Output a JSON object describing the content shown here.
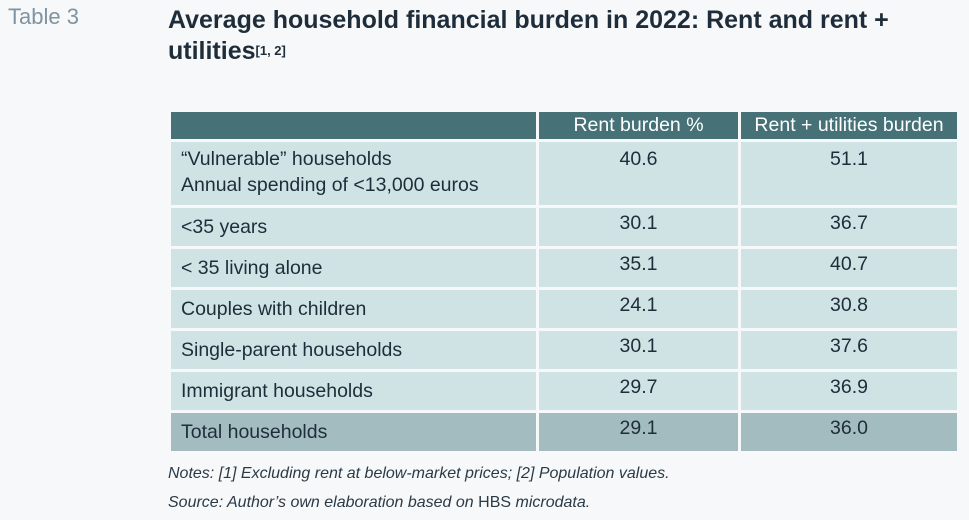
{
  "table_label": "Table 3",
  "title": "Average household financial burden in 2022: Rent and rent + utilities",
  "title_sup": "[1, 2]",
  "columns": [
    "",
    "Rent burden %",
    "Rent + utilities burden"
  ],
  "rows": [
    {
      "label": "“Vulnerable” households",
      "label2": "Annual spending of <13,000 euros",
      "rent": "40.6",
      "rent_util": "51.1"
    },
    {
      "label": "<35 years",
      "rent": "30.1",
      "rent_util": "36.7"
    },
    {
      "label": "< 35 living alone",
      "rent": "35.1",
      "rent_util": "40.7"
    },
    {
      "label": "Couples with children",
      "rent": "24.1",
      "rent_util": "30.8"
    },
    {
      "label": "Single-parent households",
      "rent": "30.1",
      "rent_util": "37.6"
    },
    {
      "label": "Immigrant households",
      "rent": "29.7",
      "rent_util": "36.9"
    },
    {
      "label": "Total households",
      "rent": "29.1",
      "rent_util": "36.0"
    }
  ],
  "notes": {
    "line1": "Notes: [1] Excluding rent at below-market prices; [2] Population values.",
    "line2_pre": "Source: Author’s own elaboration based on ",
    "line2_hbs": "HBS",
    "line2_post": " microdata."
  },
  "colors": {
    "header": "#467177",
    "row": "#cfe2e4",
    "total_row": "#a3bcc0",
    "title": "#1f2d3a",
    "table_label": "#7f93a3"
  }
}
